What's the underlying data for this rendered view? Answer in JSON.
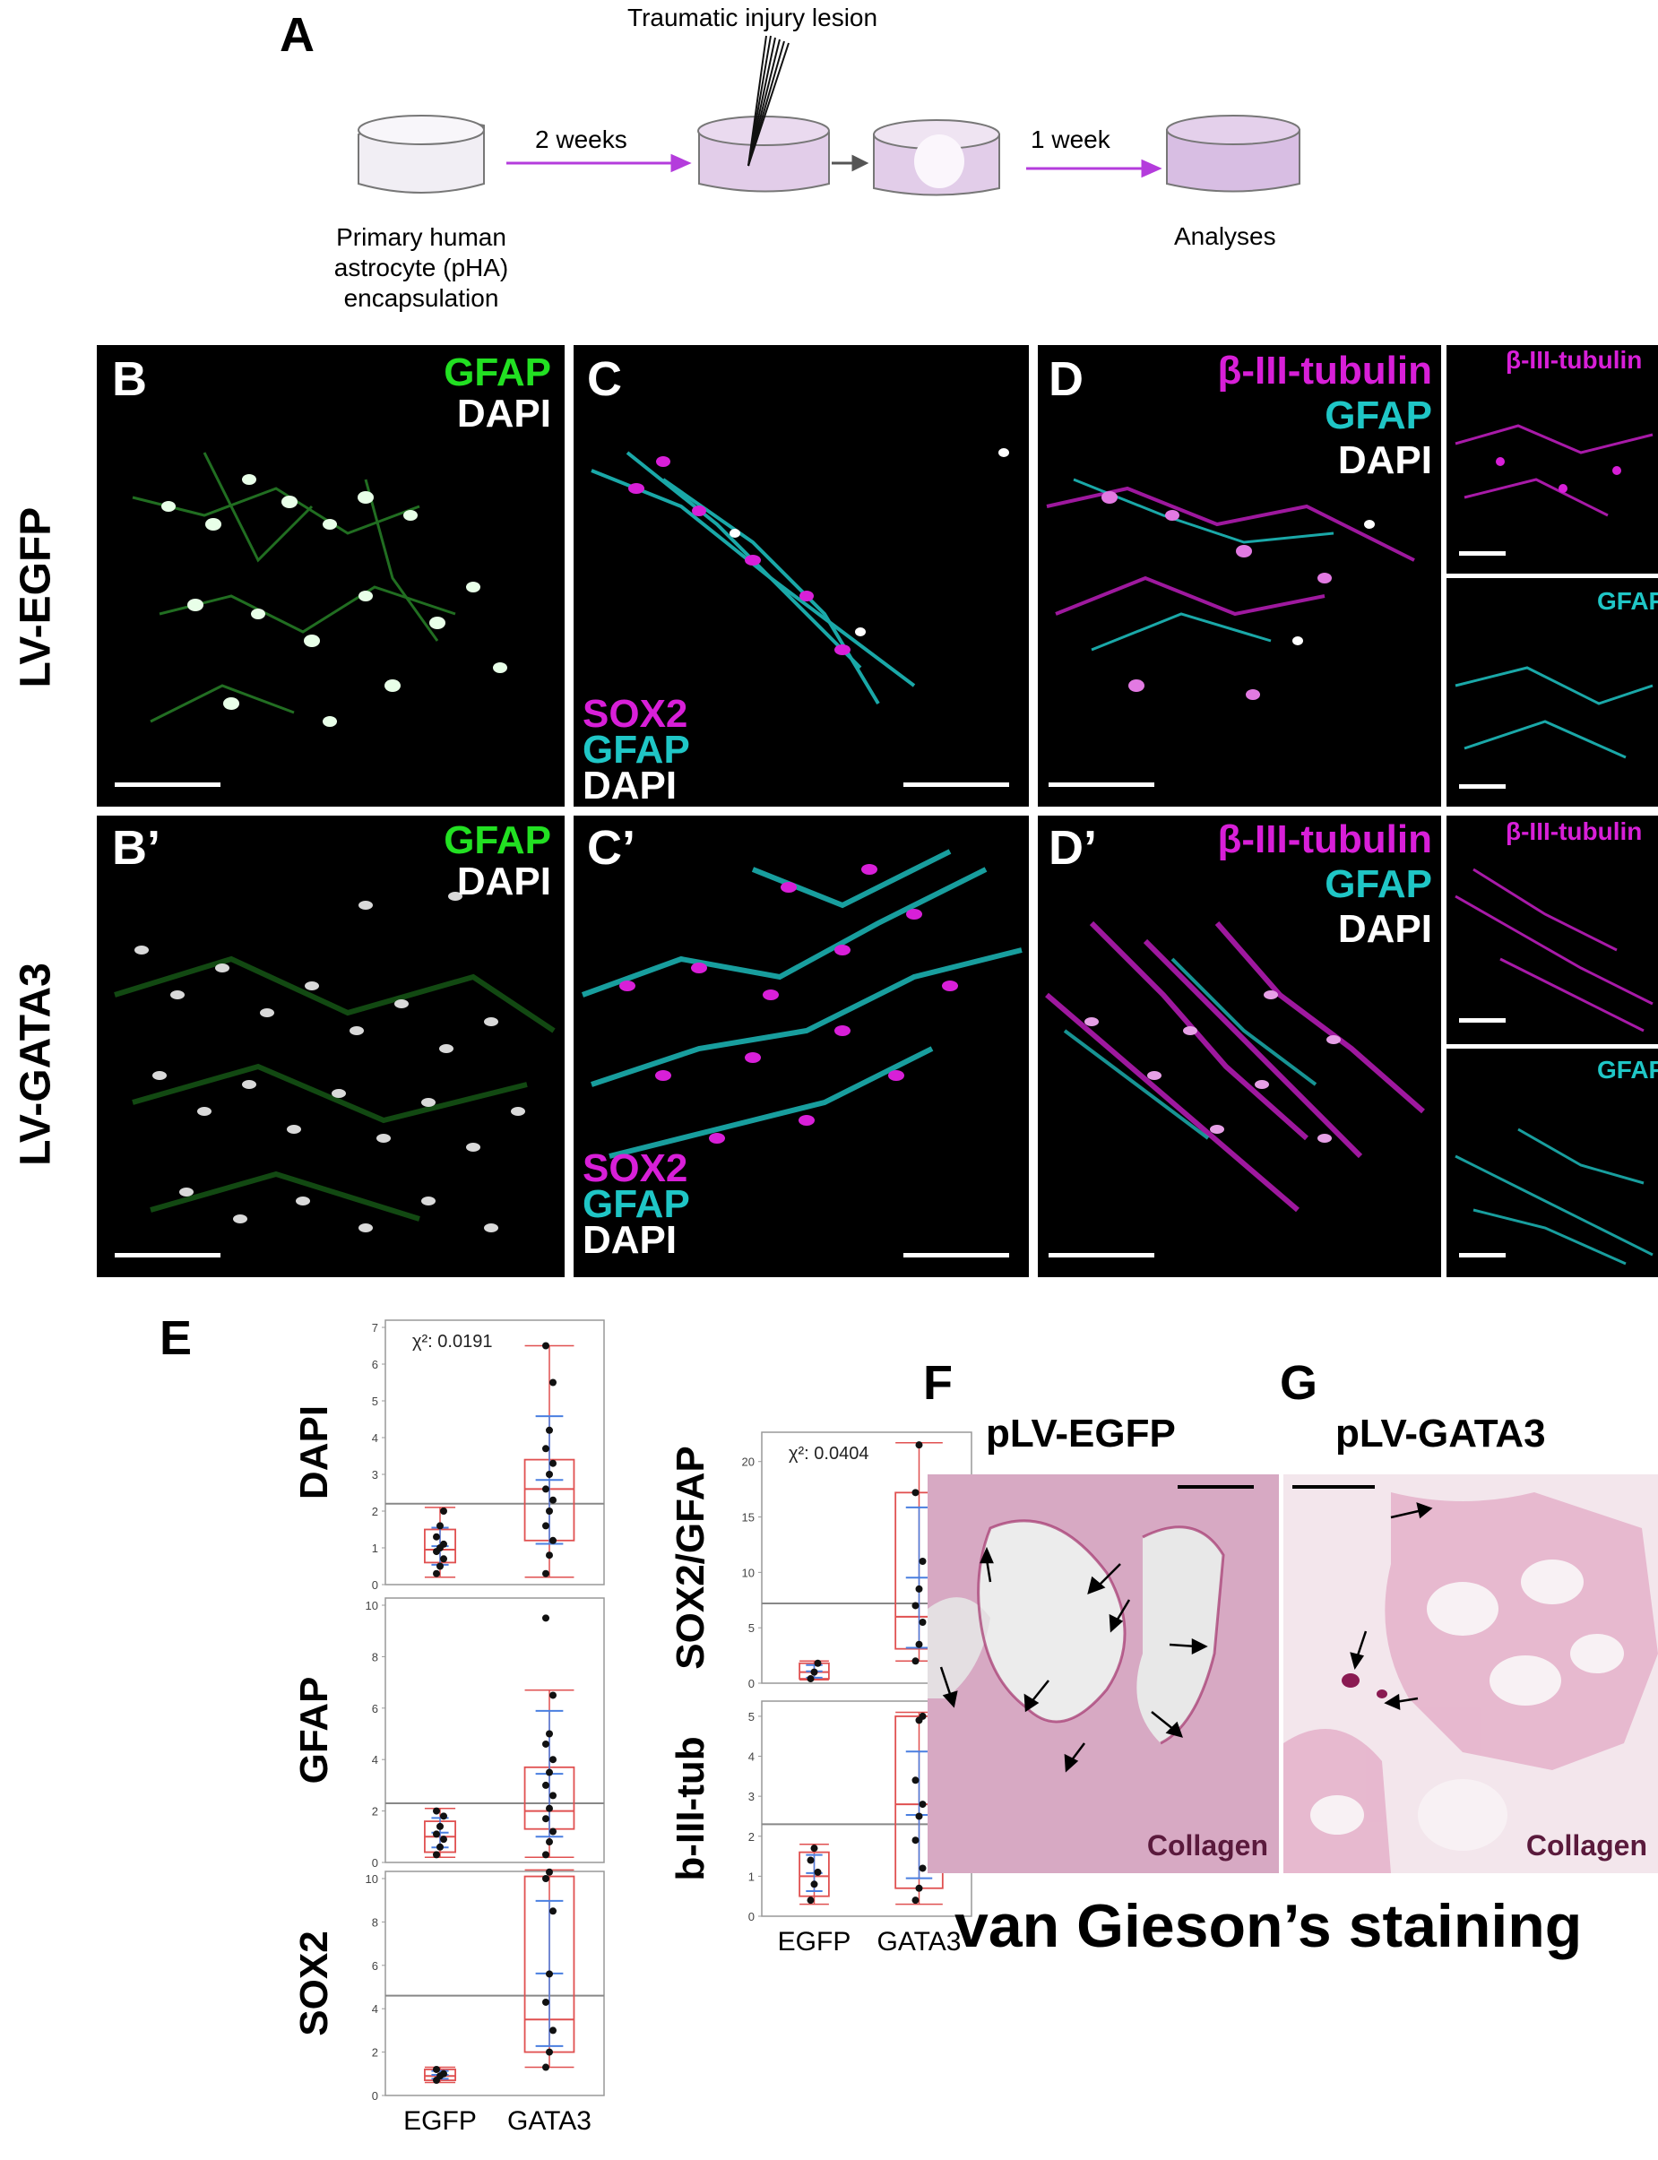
{
  "panels": {
    "A": "A",
    "B": "B",
    "B2": "B’",
    "C": "C",
    "C2": "C’",
    "D": "D",
    "D2": "D’",
    "E": "E",
    "F": "F",
    "G": "G"
  },
  "schematic": {
    "lesion_label": "Traumatic injury lesion",
    "step1": "2 weeks",
    "step2": "1 week",
    "start_label": [
      "Primary human",
      "astrocyte (pHA)",
      "encapsulation"
    ],
    "end_label": "Analyses"
  },
  "rows": {
    "top": "LV-EGFP",
    "bottom": "LV-GATA3"
  },
  "stains": {
    "gfap": "GFAP",
    "dapi": "DAPI",
    "sox2": "SOX2",
    "btub": "β-III-tubulin"
  },
  "colors": {
    "green": "#22e022",
    "cyan": "#1fc6c6",
    "magenta": "#d81fd8",
    "white": "#ffffff",
    "box_red": "#e05050",
    "whisker_blue": "#4a7fe0",
    "stain_pink": "#c8528f"
  },
  "chart_data": [
    {
      "type": "box",
      "ylabel": "DAPI",
      "categories": [
        "EGFP",
        "GATA3"
      ],
      "ylim": [
        0,
        7
      ],
      "yticks": [
        0,
        1,
        2,
        3,
        4,
        5,
        6,
        7
      ],
      "annotation": "χ²: 0.0191",
      "grand_mean": 2.2,
      "boxes": [
        {
          "category": "EGFP",
          "min": 0.2,
          "q1": 0.6,
          "median": 0.95,
          "q3": 1.5,
          "max": 2.1,
          "points": [
            0.3,
            0.5,
            0.7,
            0.9,
            1.0,
            1.1,
            1.3,
            1.6,
            2.0
          ]
        },
        {
          "category": "GATA3",
          "min": 0.2,
          "q1": 1.2,
          "median": 2.6,
          "q3": 3.4,
          "max": 6.5,
          "points": [
            0.3,
            0.8,
            1.2,
            1.6,
            2.0,
            2.3,
            2.6,
            3.0,
            3.3,
            3.7,
            4.2,
            5.5,
            6.5
          ]
        }
      ]
    },
    {
      "type": "box",
      "ylabel": "GFAP",
      "categories": [
        "EGFP",
        "GATA3"
      ],
      "ylim": [
        0,
        10
      ],
      "yticks": [
        0,
        2,
        4,
        6,
        8,
        10
      ],
      "grand_mean": 2.3,
      "boxes": [
        {
          "category": "EGFP",
          "min": 0.2,
          "q1": 0.4,
          "median": 1.0,
          "q3": 1.6,
          "max": 2.1,
          "points": [
            0.3,
            0.6,
            0.9,
            1.1,
            1.4,
            1.8,
            2.0
          ]
        },
        {
          "category": "GATA3",
          "min": 0.2,
          "q1": 1.3,
          "median": 2.0,
          "q3": 3.7,
          "max": 6.7,
          "points": [
            0.3,
            0.8,
            1.2,
            1.7,
            2.1,
            2.6,
            3.0,
            3.5,
            4.0,
            4.6,
            5.0,
            6.5,
            9.5
          ]
        }
      ]
    },
    {
      "type": "box",
      "ylabel": "SOX2",
      "categories": [
        "EGFP",
        "GATA3"
      ],
      "ylim": [
        0,
        10
      ],
      "yticks": [
        0,
        2,
        4,
        6,
        8,
        10
      ],
      "xlabels": [
        "EGFP",
        "GATA3"
      ],
      "grand_mean": 4.6,
      "boxes": [
        {
          "category": "EGFP",
          "min": 0.6,
          "q1": 0.7,
          "median": 0.9,
          "q3": 1.2,
          "max": 1.3,
          "points": [
            0.7,
            0.9,
            1.0,
            1.2
          ]
        },
        {
          "category": "GATA3",
          "min": 1.3,
          "q1": 2.0,
          "median": 3.5,
          "q3": 10.1,
          "max": 10.4,
          "points": [
            1.3,
            2.0,
            3.0,
            4.3,
            5.6,
            8.5,
            10.0,
            10.3
          ]
        }
      ]
    },
    {
      "type": "box",
      "ylabel": "SOX2/GFAP",
      "categories": [
        "EGFP",
        "GATA3"
      ],
      "ylim": [
        0,
        22
      ],
      "yticks": [
        0,
        5,
        10,
        15,
        20
      ],
      "annotation": "χ²: 0.0404",
      "grand_mean": 7.2,
      "boxes": [
        {
          "category": "EGFP",
          "min": 0.3,
          "q1": 0.4,
          "median": 1.0,
          "q3": 1.8,
          "max": 2.0,
          "points": [
            0.4,
            1.0,
            1.8
          ]
        },
        {
          "category": "GATA3",
          "min": 2.0,
          "q1": 3.1,
          "median": 6.0,
          "q3": 17.2,
          "max": 21.7,
          "points": [
            2.0,
            3.5,
            5.5,
            7.0,
            8.5,
            11.0,
            17.2,
            21.5
          ]
        }
      ]
    },
    {
      "type": "box",
      "ylabel": "b-III-tub",
      "categories": [
        "EGFP",
        "GATA3"
      ],
      "ylim": [
        0,
        5.2
      ],
      "yticks": [
        0,
        1,
        2,
        3,
        4,
        5
      ],
      "xlabels": [
        "EGFP",
        "GATA3"
      ],
      "grand_mean": 2.3,
      "boxes": [
        {
          "category": "EGFP",
          "min": 0.3,
          "q1": 0.5,
          "median": 1.0,
          "q3": 1.6,
          "max": 1.8,
          "points": [
            0.4,
            0.8,
            1.1,
            1.4,
            1.7
          ]
        },
        {
          "category": "GATA3",
          "min": 0.3,
          "q1": 0.7,
          "median": 2.8,
          "q3": 5.0,
          "max": 5.1,
          "points": [
            0.4,
            0.7,
            1.2,
            1.9,
            2.5,
            2.8,
            3.4,
            4.9,
            5.0
          ]
        }
      ]
    }
  ],
  "histology": {
    "F_title": "pLV-EGFP",
    "G_title": "pLV-GATA3",
    "collagen": "Collagen",
    "caption": "van Gieson’s staining"
  }
}
